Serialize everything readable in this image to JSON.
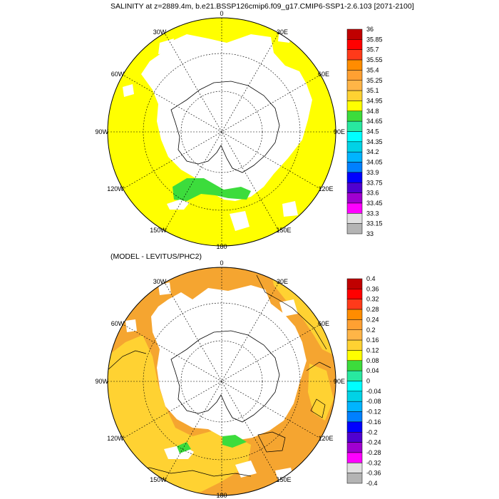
{
  "panels": [
    {
      "id": "top",
      "title": "SALINITY at z=2889.4m, b.e21.BSSP126cmip6.f09_g17.CMIP6-SSP1-2.6.103 [2071-2100]",
      "ocean_color": "#ffff00",
      "colorbar": {
        "labels": [
          "36",
          "35.85",
          "35.7",
          "35.55",
          "35.4",
          "35.25",
          "35.1",
          "34.95",
          "34.8",
          "34.65",
          "34.5",
          "34.35",
          "34.2",
          "34.05",
          "33.9",
          "33.75",
          "33.6",
          "33.45",
          "33.3",
          "33.15",
          "33"
        ],
        "colors": [
          "#c00000",
          "#ff0000",
          "#ff3a1a",
          "#ff8c00",
          "#ffa032",
          "#ffb547",
          "#ffd232",
          "#ffff00",
          "#3cdc3c",
          "#28e8a0",
          "#00ffff",
          "#00d2e6",
          "#00b4ff",
          "#0080ff",
          "#0000ff",
          "#5000d0",
          "#a000d0",
          "#ff00ff",
          "#e0e0e0",
          "#b4b4b4"
        ]
      }
    },
    {
      "id": "bottom",
      "title": "(MODEL - LEVITUS/PHC2)",
      "ocean_color": "#f5a530",
      "colorbar": {
        "labels": [
          "0.4",
          "0.36",
          "0.32",
          "0.28",
          "0.24",
          "0.2",
          "0.16",
          "0.12",
          "0.08",
          "0.04",
          "0",
          "-0.04",
          "-0.08",
          "-0.12",
          "-0.16",
          "-0.2",
          "-0.24",
          "-0.28",
          "-0.32",
          "-0.36",
          "-0.4"
        ],
        "colors": [
          "#c00000",
          "#ff0000",
          "#ff3a1a",
          "#ff8c00",
          "#ffa032",
          "#ffb547",
          "#ffd232",
          "#ffff00",
          "#3cdc3c",
          "#28e8a0",
          "#00ffff",
          "#00d2e6",
          "#00b4ff",
          "#0080ff",
          "#0000ff",
          "#5000d0",
          "#a000d0",
          "#ff00ff",
          "#e0e0e0",
          "#b4b4b4"
        ]
      }
    }
  ],
  "longitude_labels": [
    "0",
    "30E",
    "60E",
    "90E",
    "120E",
    "150E",
    "180",
    "150W",
    "120W",
    "90W",
    "60W",
    "30W"
  ],
  "map_projection": "south-polar-stereographic"
}
